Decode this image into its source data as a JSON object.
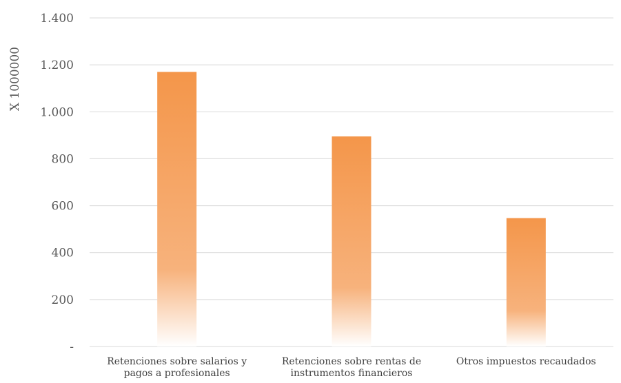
{
  "chart_data": {
    "type": "bar",
    "title": "",
    "xlabel": "",
    "ylabel": "X 1000000",
    "categories": [
      [
        "Retenciones sobre salarios y",
        "pagos a profesionales"
      ],
      [
        "Retenciones sobre rentas de",
        "instrumentos financieros"
      ],
      [
        "Otros impuestos recaudados"
      ]
    ],
    "values": [
      1170,
      895,
      547
    ],
    "ylim": [
      0,
      1400
    ],
    "yticks": [
      0,
      200,
      400,
      600,
      800,
      1000,
      1200,
      1400
    ],
    "ytick_labels": [
      "-",
      "200",
      "400",
      "600",
      "800",
      "1.000",
      "1.200",
      "1.400"
    ],
    "grid": true,
    "legend": "none",
    "colors": {
      "bar_top": "#f4964a",
      "bar_mid": "#f7b27c",
      "bar_bottom": "#ffffff",
      "grid": "#d9d9d9"
    }
  }
}
